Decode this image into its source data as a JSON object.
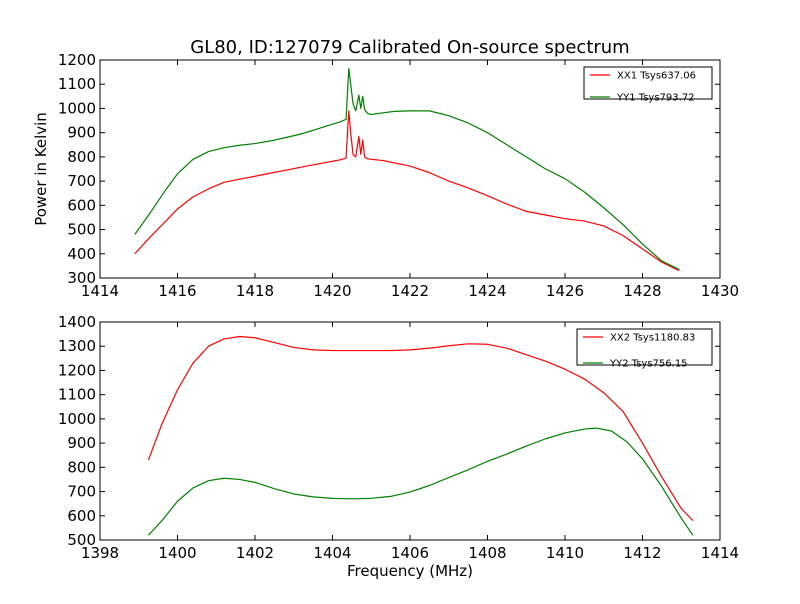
{
  "figure": {
    "title": "GL80, ID:127079 Calibrated On-source spectrum",
    "xlabel": "Frequency (MHz)",
    "ylabel": "Power in Kelvin"
  },
  "chart_data": [
    {
      "type": "line",
      "title": "GL80, ID:127079 Calibrated On-source spectrum",
      "xlabel": "",
      "ylabel": "Power in Kelvin",
      "xlim": [
        1414,
        1430
      ],
      "ylim": [
        300,
        1200
      ],
      "xticks": [
        1414,
        1416,
        1418,
        1420,
        1422,
        1424,
        1426,
        1428,
        1430
      ],
      "yticks": [
        300,
        400,
        500,
        600,
        700,
        800,
        900,
        1000,
        1100,
        1200
      ],
      "grid": false,
      "legend_position": "top-right",
      "series": [
        {
          "name": "XX1 Tsys637.06",
          "color": "#ff0000",
          "x": [
            1414.9,
            1415.3,
            1415.7,
            1416.0,
            1416.4,
            1416.8,
            1417.2,
            1417.6,
            1418.0,
            1418.4,
            1418.8,
            1419.2,
            1419.6,
            1420.0,
            1420.2,
            1420.35,
            1420.42,
            1420.47,
            1420.53,
            1420.6,
            1420.68,
            1420.73,
            1420.78,
            1420.83,
            1420.9,
            1421.0,
            1421.3,
            1421.6,
            1422.0,
            1422.5,
            1423.0,
            1423.5,
            1424.0,
            1424.5,
            1425.0,
            1425.5,
            1426.0,
            1426.5,
            1427.0,
            1427.5,
            1428.0,
            1428.5,
            1428.95
          ],
          "y": [
            400,
            470,
            535,
            585,
            635,
            668,
            695,
            708,
            720,
            733,
            745,
            758,
            770,
            782,
            788,
            795,
            990,
            900,
            810,
            800,
            885,
            810,
            870,
            800,
            792,
            790,
            785,
            775,
            762,
            735,
            700,
            672,
            640,
            605,
            575,
            560,
            545,
            535,
            515,
            475,
            420,
            365,
            330
          ]
        },
        {
          "name": "YY1 Tsys793.72",
          "color": "#008000",
          "x": [
            1414.9,
            1415.3,
            1415.7,
            1416.0,
            1416.4,
            1416.8,
            1417.2,
            1417.6,
            1418.0,
            1418.4,
            1418.8,
            1419.2,
            1419.6,
            1420.0,
            1420.2,
            1420.35,
            1420.42,
            1420.47,
            1420.53,
            1420.6,
            1420.68,
            1420.73,
            1420.78,
            1420.83,
            1420.9,
            1421.0,
            1421.3,
            1421.6,
            1422.0,
            1422.5,
            1423.0,
            1423.5,
            1424.0,
            1424.5,
            1425.0,
            1425.5,
            1426.0,
            1426.5,
            1427.0,
            1427.5,
            1428.0,
            1428.5,
            1428.95
          ],
          "y": [
            480,
            570,
            665,
            730,
            790,
            822,
            838,
            848,
            855,
            866,
            880,
            895,
            915,
            935,
            945,
            955,
            1165,
            1100,
            1020,
            990,
            1055,
            1000,
            1050,
            995,
            980,
            975,
            982,
            988,
            990,
            990,
            970,
            940,
            900,
            850,
            800,
            750,
            710,
            655,
            590,
            520,
            440,
            370,
            335
          ]
        }
      ]
    },
    {
      "type": "line",
      "title": "",
      "xlabel": "Frequency (MHz)",
      "ylabel": "",
      "xlim": [
        1398,
        1414
      ],
      "ylim": [
        500,
        1400
      ],
      "xticks": [
        1398,
        1400,
        1402,
        1404,
        1406,
        1408,
        1410,
        1412,
        1414
      ],
      "yticks": [
        500,
        600,
        700,
        800,
        900,
        1000,
        1100,
        1200,
        1300,
        1400
      ],
      "grid": false,
      "legend_position": "top-right",
      "series": [
        {
          "name": "XX2 Tsys1180.83",
          "color": "#ff0000",
          "x": [
            1399.25,
            1399.6,
            1400.0,
            1400.4,
            1400.8,
            1401.2,
            1401.6,
            1402.0,
            1402.5,
            1403.0,
            1403.5,
            1404.0,
            1404.5,
            1405.0,
            1405.5,
            1406.0,
            1406.5,
            1407.0,
            1407.5,
            1408.0,
            1408.5,
            1409.0,
            1409.5,
            1410.0,
            1410.5,
            1411.0,
            1411.5,
            1412.0,
            1412.5,
            1413.0,
            1413.3
          ],
          "y": [
            830,
            980,
            1120,
            1230,
            1300,
            1330,
            1340,
            1335,
            1315,
            1295,
            1285,
            1282,
            1282,
            1282,
            1282,
            1285,
            1292,
            1302,
            1310,
            1308,
            1292,
            1265,
            1238,
            1205,
            1165,
            1108,
            1030,
            900,
            760,
            630,
            580
          ]
        },
        {
          "name": "YY2 Tsys756.15",
          "color": "#008000",
          "x": [
            1399.25,
            1399.6,
            1400.0,
            1400.4,
            1400.8,
            1401.2,
            1401.6,
            1402.0,
            1402.5,
            1403.0,
            1403.5,
            1404.0,
            1404.5,
            1405.0,
            1405.5,
            1406.0,
            1406.5,
            1407.0,
            1407.5,
            1408.0,
            1408.5,
            1409.0,
            1409.5,
            1410.0,
            1410.5,
            1410.8,
            1411.2,
            1411.6,
            1412.0,
            1412.5,
            1413.0,
            1413.3
          ],
          "y": [
            520,
            580,
            660,
            715,
            745,
            755,
            750,
            738,
            712,
            690,
            678,
            672,
            670,
            672,
            680,
            698,
            725,
            758,
            790,
            825,
            855,
            888,
            918,
            942,
            958,
            962,
            950,
            905,
            835,
            720,
            590,
            520
          ]
        }
      ]
    }
  ]
}
